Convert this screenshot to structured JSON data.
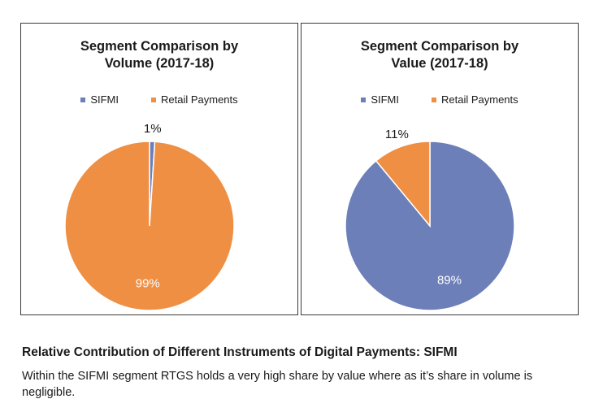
{
  "chart_data": [
    {
      "type": "pie",
      "title": "Segment Comparison by Volume (2017-18)",
      "title_lines": [
        "Segment Comparison by",
        "Volume (2017-18)"
      ],
      "categories": [
        "SIFMI",
        "Retail Payments"
      ],
      "values": [
        1,
        99
      ],
      "labels": [
        "1%",
        "99%"
      ],
      "colors": [
        "#6c7fb8",
        "#ef8f43"
      ],
      "legend": "top"
    },
    {
      "type": "pie",
      "title": "Segment Comparison by Value (2017-18)",
      "title_lines": [
        "Segment Comparison by",
        "Value (2017-18)"
      ],
      "categories": [
        "SIFMI",
        "Retail Payments"
      ],
      "values": [
        89,
        11
      ],
      "labels": [
        "89%",
        "11%"
      ],
      "colors": [
        "#6c7fb8",
        "#ef8f43"
      ],
      "legend": "top"
    }
  ],
  "caption": {
    "title": "Relative Contribution of Different Instruments of Digital Payments: SIFMI",
    "text": "Within the SIFMI segment RTGS holds a very high share by value where as it’s share in volume is negligible."
  }
}
